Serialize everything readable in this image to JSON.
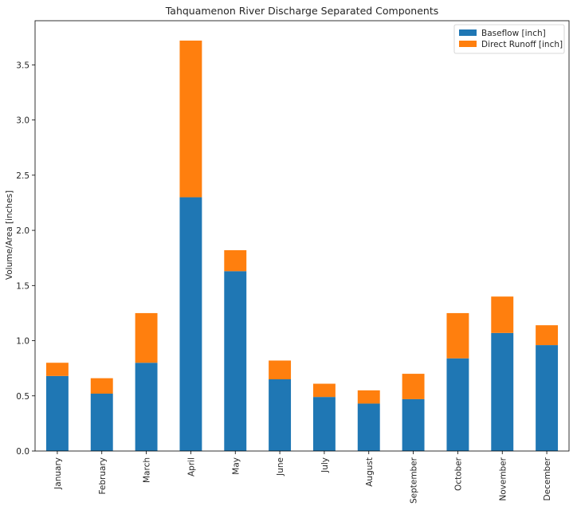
{
  "chart_data": {
    "type": "bar",
    "stacked": true,
    "title": "Tahquamenon River Discharge Separated Components",
    "xlabel": "",
    "ylabel": "Volume/Area [inches]",
    "ylim": [
      0,
      3.9
    ],
    "yticks": [
      "0.0",
      "0.5",
      "1.0",
      "1.5",
      "2.0",
      "2.5",
      "3.0",
      "3.5"
    ],
    "grid": false,
    "legend_position": "top-right",
    "categories": [
      "January",
      "February",
      "March",
      "April",
      "May",
      "June",
      "July",
      "August",
      "September",
      "October",
      "November",
      "December"
    ],
    "series": [
      {
        "name": "Baseflow [inch]",
        "color": "#1f77b4",
        "values": [
          0.68,
          0.52,
          0.8,
          2.3,
          1.63,
          0.65,
          0.49,
          0.43,
          0.47,
          0.84,
          1.07,
          0.96
        ]
      },
      {
        "name": "Direct Runoff [inch]",
        "color": "#ff7f0e",
        "values": [
          0.12,
          0.14,
          0.45,
          1.42,
          0.19,
          0.17,
          0.12,
          0.12,
          0.23,
          0.41,
          0.33,
          0.18
        ]
      }
    ]
  }
}
